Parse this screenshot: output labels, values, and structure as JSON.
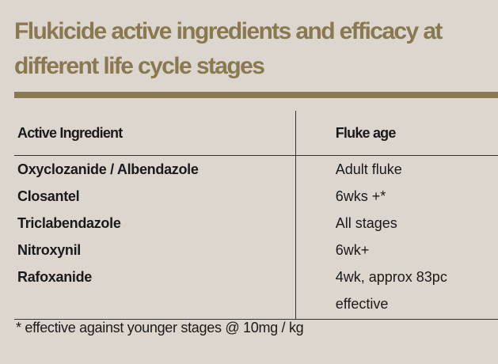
{
  "header": {
    "title": "Flukicide active ingredients and efficacy at different life cycle stages"
  },
  "table": {
    "header": [
      "Active Ingredient",
      "Fluke age"
    ],
    "rows": [
      [
        "Oxyclozanide / Albendazole",
        "Adult fluke"
      ],
      [
        "Closantel",
        "6wks +*"
      ],
      [
        "Triclabendazole",
        "All stages"
      ],
      [
        "Nitroxynil",
        "6wk+"
      ],
      [
        "Rafoxanide",
        "4wk, approx 83pc effective"
      ]
    ]
  },
  "footnote": "* effective against younger stages @ 10mg / kg"
}
